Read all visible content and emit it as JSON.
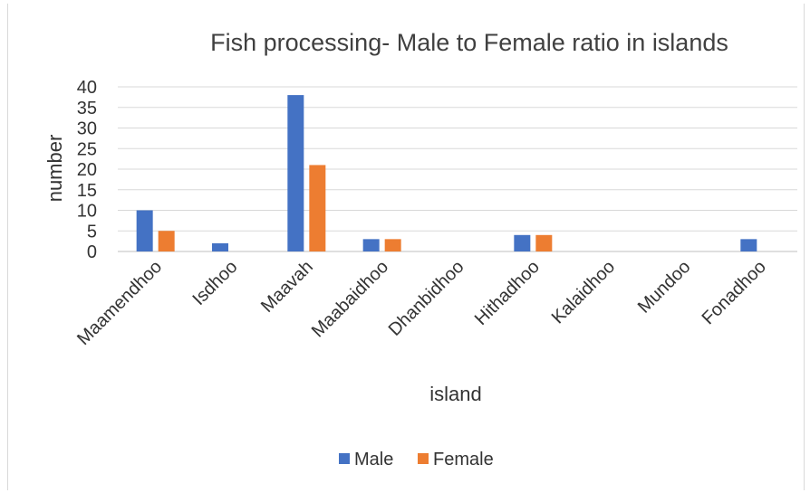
{
  "chart_data": {
    "type": "bar",
    "title": "Fish processing-  Male to Female ratio in islands",
    "xlabel": "island",
    "ylabel": "number",
    "categories": [
      "Maamendhoo",
      "Isdhoo",
      "Maavah",
      "Maabaidhoo",
      "Dhanbidhoo",
      "Hithadhoo",
      "Kalaidhoo",
      "Mundoo",
      "Fonadhoo"
    ],
    "series": [
      {
        "name": "Male",
        "color": "#4472c4",
        "values": [
          10,
          2,
          38,
          3,
          0,
          4,
          0,
          0,
          3
        ]
      },
      {
        "name": "Female",
        "color": "#ed7d31",
        "values": [
          5,
          0,
          21,
          3,
          0,
          4,
          0,
          0,
          0
        ]
      }
    ],
    "ylim": [
      0,
      40
    ],
    "yticks": [
      0,
      5,
      10,
      15,
      20,
      25,
      30,
      35,
      40
    ],
    "grid": true,
    "legend_position": "bottom"
  }
}
